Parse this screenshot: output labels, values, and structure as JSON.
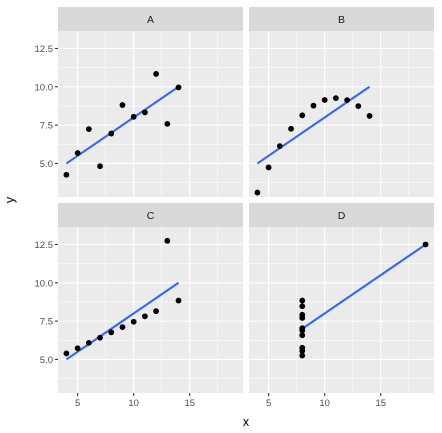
{
  "chart_data": {
    "type": "scatter",
    "layout": "faceted-2x2",
    "xlabel": "x",
    "ylabel": "y",
    "xlim": [
      3.25,
      19.75
    ],
    "ylim": [
      2.81,
      13.64
    ],
    "x_ticks": [
      5,
      10,
      15
    ],
    "y_ticks": [
      5.0,
      7.5,
      10.0,
      12.5
    ],
    "x_tick_labels": [
      "5",
      "10",
      "15"
    ],
    "y_tick_labels": [
      "5.0",
      "7.5",
      "10.0",
      "12.5"
    ],
    "grid": true,
    "colors": {
      "points": "#000000",
      "fit_line": "#3366ff",
      "panel": "#ebebeb",
      "strip": "#d9d9d9"
    },
    "facets": [
      {
        "label": "A",
        "points": [
          [
            10,
            8.04
          ],
          [
            8,
            6.95
          ],
          [
            13,
            7.58
          ],
          [
            9,
            8.81
          ],
          [
            11,
            8.33
          ],
          [
            14,
            9.96
          ],
          [
            6,
            7.24
          ],
          [
            4,
            4.26
          ],
          [
            12,
            10.84
          ],
          [
            7,
            4.82
          ],
          [
            5,
            5.68
          ]
        ],
        "fit": {
          "intercept": 3.0,
          "slope": 0.5,
          "x_range": [
            4,
            14
          ]
        }
      },
      {
        "label": "B",
        "points": [
          [
            10,
            9.14
          ],
          [
            8,
            8.14
          ],
          [
            13,
            8.74
          ],
          [
            9,
            8.77
          ],
          [
            11,
            9.26
          ],
          [
            14,
            8.1
          ],
          [
            6,
            6.13
          ],
          [
            4,
            3.1
          ],
          [
            12,
            9.13
          ],
          [
            7,
            7.26
          ],
          [
            5,
            4.74
          ]
        ],
        "fit": {
          "intercept": 3.0,
          "slope": 0.5,
          "x_range": [
            4,
            14
          ]
        }
      },
      {
        "label": "C",
        "points": [
          [
            10,
            7.46
          ],
          [
            8,
            6.77
          ],
          [
            13,
            12.74
          ],
          [
            9,
            7.11
          ],
          [
            11,
            7.81
          ],
          [
            14,
            8.84
          ],
          [
            6,
            6.08
          ],
          [
            4,
            5.39
          ],
          [
            12,
            8.15
          ],
          [
            7,
            6.42
          ],
          [
            5,
            5.73
          ]
        ],
        "fit": {
          "intercept": 3.0,
          "slope": 0.5,
          "x_range": [
            4,
            14
          ]
        }
      },
      {
        "label": "D",
        "points": [
          [
            8,
            6.58
          ],
          [
            8,
            5.76
          ],
          [
            8,
            7.71
          ],
          [
            8,
            8.84
          ],
          [
            8,
            8.47
          ],
          [
            8,
            7.04
          ],
          [
            8,
            5.25
          ],
          [
            19,
            12.5
          ],
          [
            8,
            5.56
          ],
          [
            8,
            7.91
          ],
          [
            8,
            6.89
          ]
        ],
        "fit": {
          "intercept": 3.0,
          "slope": 0.5,
          "x_range": [
            8,
            19
          ]
        }
      }
    ]
  }
}
